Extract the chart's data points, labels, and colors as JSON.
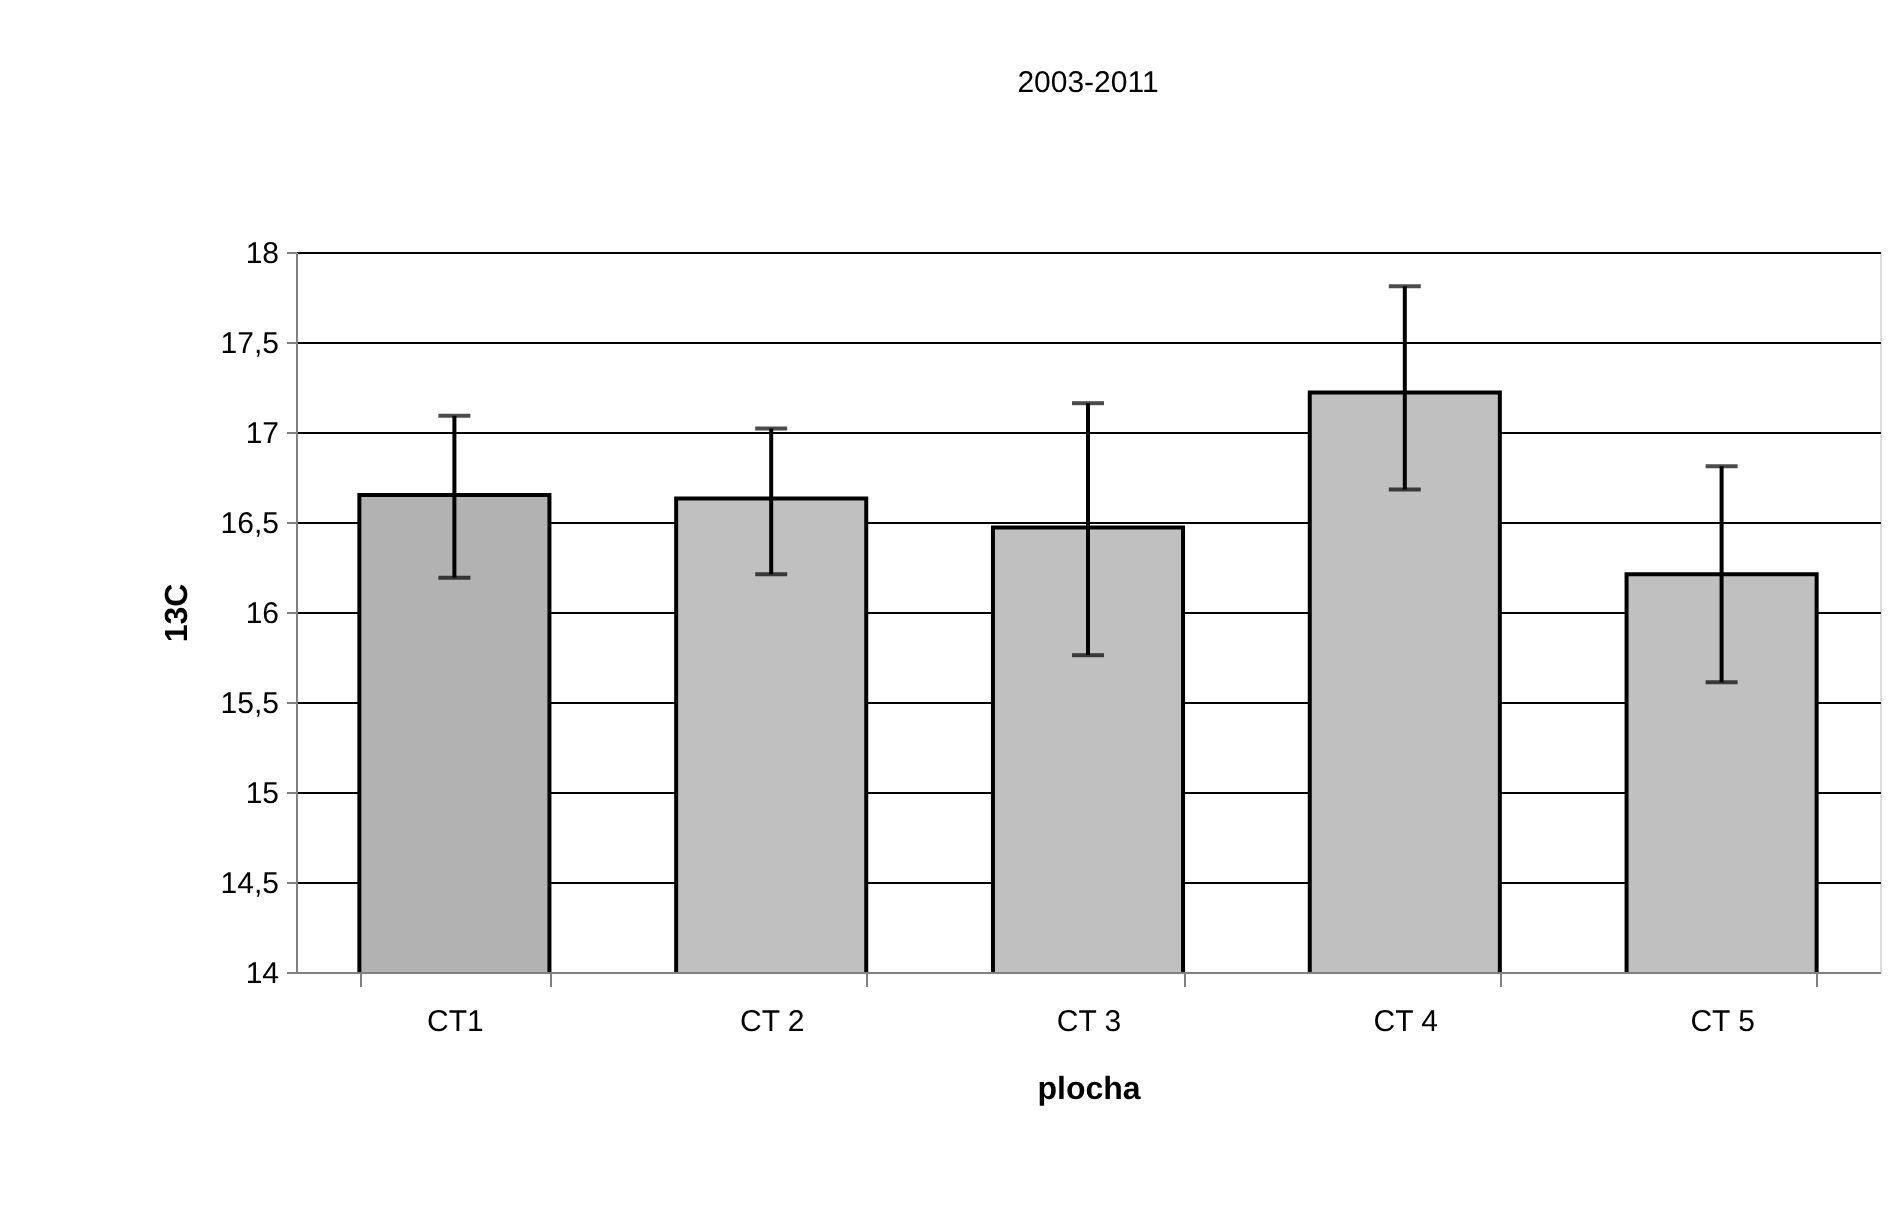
{
  "chart_data": {
    "type": "bar",
    "title": "2003-2011",
    "xlabel": "plocha",
    "ylabel": "13C",
    "categories": [
      "CT1",
      "CT 2",
      "CT 3",
      "CT 4",
      "CT 5"
    ],
    "values": [
      16.65,
      16.63,
      16.47,
      17.22,
      16.21
    ],
    "colors": [
      "#b2b2b2",
      "#c0c0c0",
      "#c0c0c0",
      "#c0c0c0",
      "#c0c0c0"
    ],
    "errors": [
      [
        16.19,
        17.09
      ],
      [
        16.21,
        17.02
      ],
      [
        15.76,
        17.16
      ],
      [
        16.68,
        17.81
      ],
      [
        15.61,
        16.81
      ]
    ],
    "ylim": [
      14,
      18
    ],
    "yticks": [
      14,
      {
        "value": 14.5,
        "label": "14,5"
      },
      15,
      {
        "value": 15.5,
        "label": "15,5"
      },
      16,
      {
        "value": 16.5,
        "label": "16,5"
      },
      17,
      {
        "value": 17.5,
        "label": "17,5"
      },
      18
    ],
    "grid": "y"
  }
}
